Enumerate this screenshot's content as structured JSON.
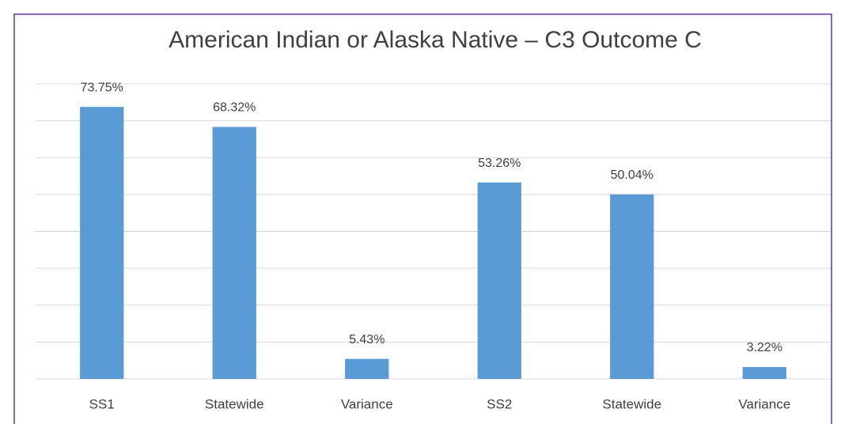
{
  "chart_data": {
    "type": "bar",
    "title": "American Indian or Alaska Native – C3 Outcome C",
    "categories": [
      "SS1",
      "Statewide",
      "Variance",
      "SS2",
      "Statewide",
      "Variance"
    ],
    "values": [
      73.75,
      68.32,
      5.43,
      53.26,
      50.04,
      3.22
    ],
    "value_labels": [
      "73.75%",
      "68.32%",
      "5.43%",
      "53.26%",
      "50.04%",
      "3.22%"
    ],
    "color": "#5b9bd5",
    "ylim": [
      0,
      80
    ],
    "yticks": [
      0,
      10,
      20,
      30,
      40,
      50,
      60,
      70,
      80
    ],
    "grid": true
  }
}
